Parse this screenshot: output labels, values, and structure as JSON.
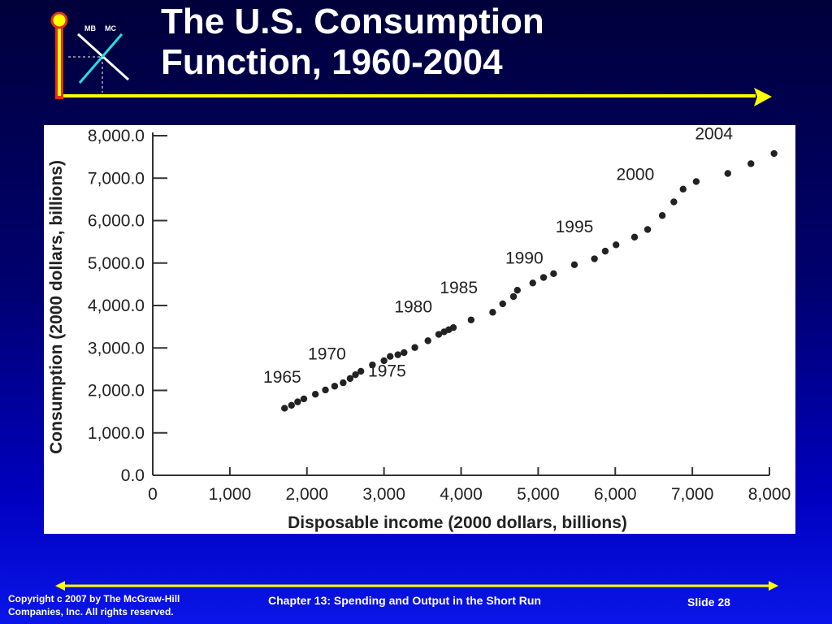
{
  "slide": {
    "title_line1": "The U.S. Consumption",
    "title_line2": "Function, 1960-2004",
    "logo": {
      "mb_label": "MB",
      "mc_label": "MC"
    },
    "footer": {
      "copyright_line1": "Copyright c 2007 by The McGraw-Hill",
      "copyright_line2": "Companies, Inc.  All rights reserved.",
      "chapter": "Chapter 13: Spending and Output in the Short Run",
      "slide_number": "Slide 28"
    },
    "colors": {
      "accent_yellow": "#ffff00",
      "logo_red": "#e0301e",
      "logo_cyan": "#22e0e0",
      "bg_dark": "#00003a",
      "bg_bright": "#0a16e8",
      "point": "#222222"
    }
  },
  "chart_data": {
    "type": "scatter",
    "title": "",
    "xlabel": "Disposable income (2000 dollars, billions)",
    "ylabel": "Consumption (2000 dollars, billions)",
    "xlim": [
      0,
      8000
    ],
    "ylim": [
      0,
      8000
    ],
    "x_ticks": [
      "0",
      "1,000",
      "2,000",
      "3,000",
      "4,000",
      "5,000",
      "6,000",
      "7,000",
      "8,000"
    ],
    "y_ticks": [
      "0.0",
      "1,000.0",
      "2,000.0",
      "3,000.0",
      "4,000.0",
      "5,000.0",
      "6,000.0",
      "7,000.0",
      "8,000.0"
    ],
    "series": [
      {
        "points": [
          [
            1710,
            1580
          ],
          [
            1800,
            1650
          ],
          [
            1880,
            1730
          ],
          [
            1960,
            1800
          ],
          [
            2110,
            1910
          ],
          [
            2240,
            2010
          ],
          [
            2360,
            2100
          ],
          [
            2470,
            2180
          ],
          [
            2560,
            2280
          ],
          [
            2630,
            2370
          ],
          [
            2700,
            2450
          ],
          [
            2850,
            2600
          ],
          [
            3000,
            2700
          ],
          [
            3080,
            2800
          ],
          [
            3180,
            2840
          ],
          [
            3260,
            2890
          ],
          [
            3400,
            3010
          ],
          [
            3570,
            3170
          ],
          [
            3710,
            3320
          ],
          [
            3780,
            3380
          ],
          [
            3840,
            3430
          ],
          [
            3900,
            3480
          ],
          [
            4130,
            3660
          ],
          [
            4410,
            3840
          ],
          [
            4540,
            4040
          ],
          [
            4680,
            4210
          ],
          [
            4730,
            4360
          ],
          [
            4930,
            4530
          ],
          [
            5070,
            4660
          ],
          [
            5200,
            4750
          ],
          [
            5470,
            4960
          ],
          [
            5730,
            5100
          ],
          [
            5870,
            5280
          ],
          [
            6010,
            5430
          ],
          [
            6250,
            5610
          ],
          [
            6420,
            5790
          ],
          [
            6610,
            6120
          ],
          [
            6760,
            6440
          ],
          [
            6880,
            6740
          ],
          [
            7050,
            6920
          ],
          [
            7460,
            7110
          ],
          [
            7760,
            7340
          ],
          [
            8060,
            7580
          ]
        ]
      }
    ],
    "annotations": [
      {
        "text": "1965",
        "x": 1680,
        "y": 2180
      },
      {
        "text": "1970",
        "x": 2260,
        "y": 2730
      },
      {
        "text": "1975",
        "x": 3040,
        "y": 2330
      },
      {
        "text": "1980",
        "x": 3380,
        "y": 3840
      },
      {
        "text": "1985",
        "x": 3970,
        "y": 4290
      },
      {
        "text": "1990",
        "x": 4820,
        "y": 4990
      },
      {
        "text": "1995",
        "x": 5470,
        "y": 5720
      },
      {
        "text": "2000",
        "x": 6260,
        "y": 6960
      },
      {
        "text": "2004",
        "x": 7280,
        "y": 7910
      }
    ],
    "grid": false,
    "legend": "none"
  }
}
